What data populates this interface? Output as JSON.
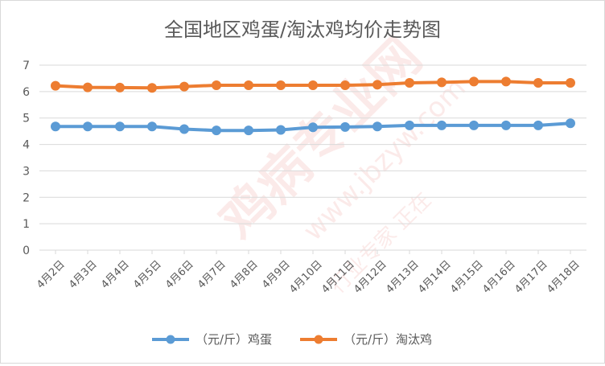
{
  "chart_data": {
    "type": "line",
    "title": "全国地区鸡蛋/淘汰鸡均价走势图",
    "categories": [
      "4月2日",
      "4月3日",
      "4月4日",
      "4月5日",
      "4月6日",
      "4月7日",
      "4月8日",
      "4月9日",
      "4月10日",
      "4月11日",
      "4月12日",
      "4月13日",
      "4月14日",
      "4月15日",
      "4月16日",
      "4月17日",
      "4月18日"
    ],
    "series": [
      {
        "name": "（元/斤）鸡蛋",
        "color": "#5b9bd5",
        "values": [
          4.68,
          4.68,
          4.68,
          4.68,
          4.58,
          4.53,
          4.53,
          4.55,
          4.65,
          4.66,
          4.68,
          4.72,
          4.72,
          4.72,
          4.72,
          4.72,
          4.8
        ]
      },
      {
        "name": "（元/斤）淘汰鸡",
        "color": "#ed7d31",
        "values": [
          6.22,
          6.16,
          6.15,
          6.14,
          6.19,
          6.24,
          6.24,
          6.24,
          6.24,
          6.24,
          6.26,
          6.33,
          6.35,
          6.38,
          6.38,
          6.33,
          6.33
        ]
      }
    ],
    "yticks": [
      "0",
      "1",
      "2",
      "3",
      "4",
      "5",
      "6",
      "7"
    ],
    "ylim": [
      0,
      7
    ],
    "grid": true,
    "legend_position": "bottom",
    "xlabel": "",
    "ylabel": ""
  },
  "watermark": {
    "text": "鸡病专业网",
    "url": "www.jbzyw.com",
    "slogan": "行业专家 正在"
  }
}
